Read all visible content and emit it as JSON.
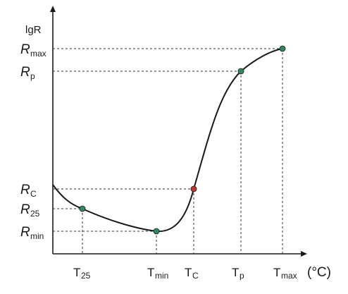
{
  "chart_data": {
    "type": "line",
    "title": "",
    "ylabel": "lgR",
    "xunit": "(°C)",
    "y_ticks": [
      {
        "main": "R",
        "sub": "max"
      },
      {
        "main": "R",
        "sub": "p"
      },
      {
        "main": "R",
        "sub": "C"
      },
      {
        "main": "R",
        "sub": "25"
      },
      {
        "main": "R",
        "sub": "min"
      }
    ],
    "x_ticks": [
      {
        "main": "T",
        "sub": "25"
      },
      {
        "main": "T",
        "sub": "min"
      },
      {
        "main": "T",
        "sub": "C"
      },
      {
        "main": "T",
        "sub": "p"
      },
      {
        "main": "T",
        "sub": "max"
      }
    ],
    "points": [
      {
        "name": "T25-R25",
        "color": "#2e8a5c"
      },
      {
        "name": "Tmin-Rmin",
        "color": "#2e8a5c"
      },
      {
        "name": "Tc-Rc",
        "color": "#c0392b"
      },
      {
        "name": "Tp-Rp",
        "color": "#2e8a5c"
      },
      {
        "name": "Tmax-Rmax",
        "color": "#2e8a5c"
      }
    ],
    "curve_color": "#1a1a1a",
    "grid": "dashed guide lines to axes",
    "legend": "none"
  }
}
